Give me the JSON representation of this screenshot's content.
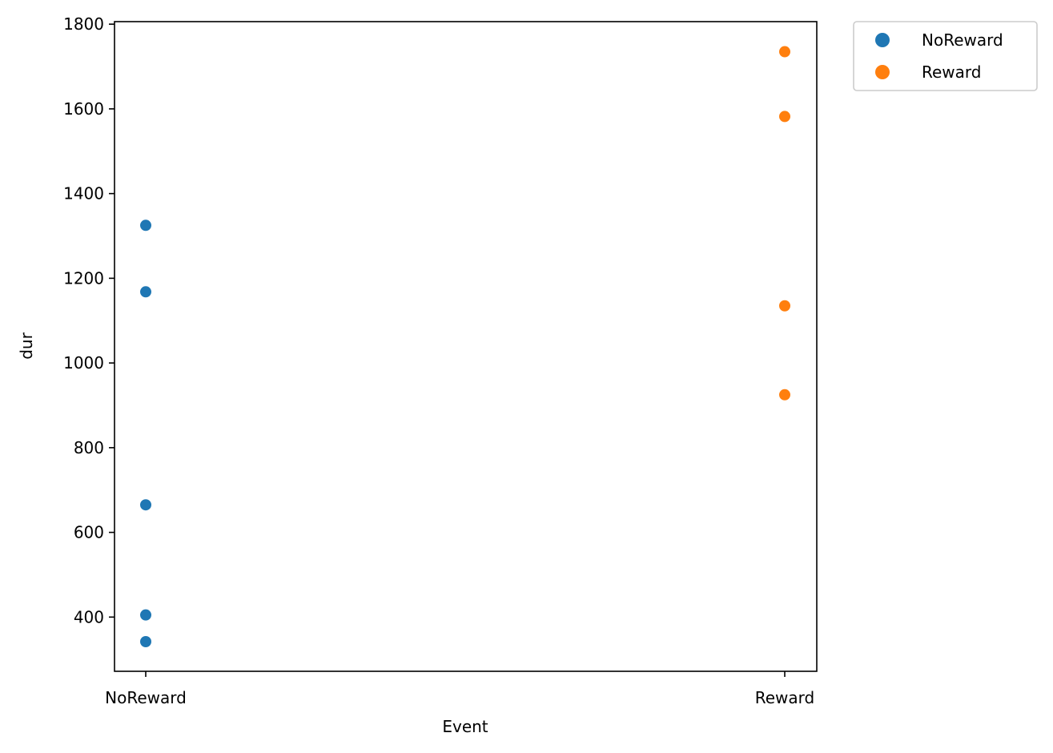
{
  "chart_data": {
    "type": "scatter",
    "title": "",
    "xlabel": "Event",
    "ylabel": "dur",
    "categories": [
      "NoReward",
      "Reward"
    ],
    "ylim": [
      272,
      1806
    ],
    "yticks": [
      400,
      600,
      800,
      1000,
      1200,
      1400,
      1600,
      1800
    ],
    "grid": false,
    "legend_position": "outside-upper-right",
    "series": [
      {
        "name": "NoReward",
        "color": "#1f77b4",
        "category": "NoReward",
        "values": [
          1325,
          1168,
          665,
          405,
          342
        ]
      },
      {
        "name": "Reward",
        "color": "#ff7f0e",
        "category": "Reward",
        "values": [
          1735,
          1582,
          1135,
          925
        ]
      }
    ]
  }
}
